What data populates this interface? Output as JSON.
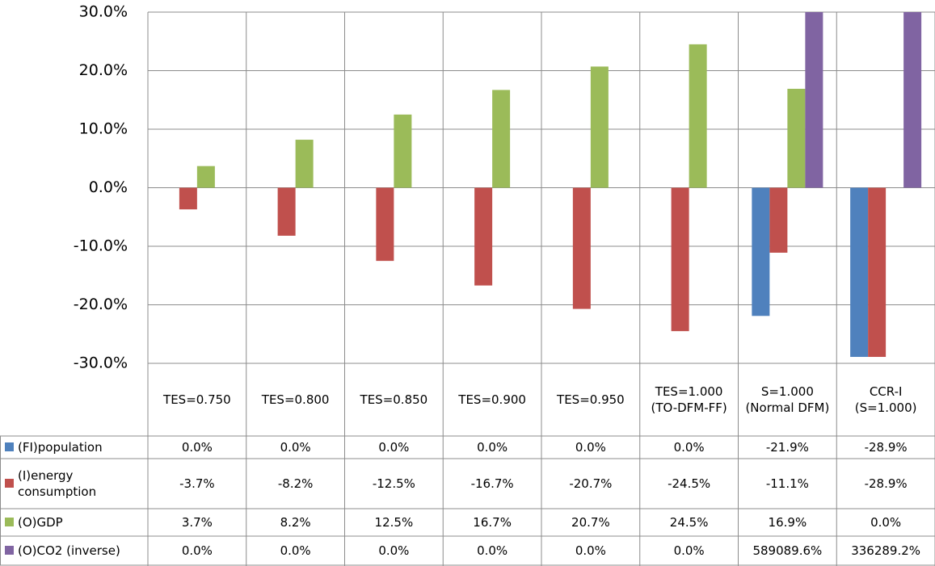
{
  "chart_data": {
    "type": "bar",
    "categories": [
      "TES=0.750",
      "TES=0.800",
      "TES=0.850",
      "TES=0.900",
      "TES=0.950",
      "TES=1.000 (TO-DFM-FF)",
      "S=1.000 (Normal DFM)",
      "CCR-I (S=1.000)"
    ],
    "series": [
      {
        "name": "(FI)population",
        "color": "#4f81bd",
        "values": [
          0,
          0,
          0,
          0,
          0,
          0,
          -21.9,
          -28.9
        ],
        "value_labels": [
          "0.0%",
          "0.0%",
          "0.0%",
          "0.0%",
          "0.0%",
          "0.0%",
          "-21.9%",
          "-28.9%"
        ]
      },
      {
        "name": "(I)energy consumption",
        "color": "#c0504d",
        "values": [
          -3.7,
          -8.2,
          -12.5,
          -16.7,
          -20.7,
          -24.5,
          -11.1,
          -28.9
        ],
        "value_labels": [
          "-3.7%",
          "-8.2%",
          "-12.5%",
          "-16.7%",
          "-20.7%",
          "-24.5%",
          "-11.1%",
          "-28.9%"
        ]
      },
      {
        "name": "(O)GDP",
        "color": "#9bbb59",
        "values": [
          3.7,
          8.2,
          12.5,
          16.7,
          20.7,
          24.5,
          16.9,
          0
        ],
        "value_labels": [
          "3.7%",
          "8.2%",
          "12.5%",
          "16.7%",
          "20.7%",
          "24.5%",
          "16.9%",
          "0.0%"
        ]
      },
      {
        "name": "(O)CO2 (inverse)",
        "color": "#8064a2",
        "values": [
          0,
          0,
          0,
          0,
          0,
          0,
          589089.6,
          336289.2
        ],
        "value_labels": [
          "0.0%",
          "0.0%",
          "0.0%",
          "0.0%",
          "0.0%",
          "0.0%",
          "589089.6%",
          "336289.2%"
        ]
      }
    ],
    "ylim": [
      -30,
      30
    ],
    "yticks": [
      {
        "value": 30,
        "label": "30.0%"
      },
      {
        "value": 20,
        "label": "20.0%"
      },
      {
        "value": 10,
        "label": "10.0%"
      },
      {
        "value": 0,
        "label": "0.0%"
      },
      {
        "value": -10,
        "label": "-10.0%"
      },
      {
        "value": -20,
        "label": "-20.0%"
      },
      {
        "value": -30,
        "label": "-30.0%"
      }
    ],
    "grid": true,
    "data_table": true
  }
}
